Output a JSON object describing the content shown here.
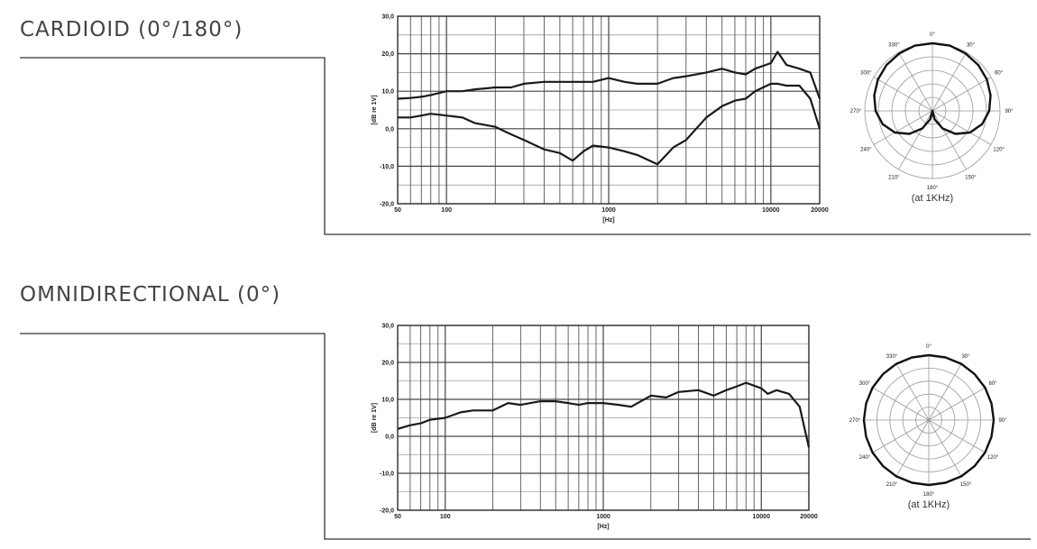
{
  "chart_data": [
    {
      "type": "line",
      "title": "CARDIOID (0°/180°)",
      "xlabel": "[Hz]",
      "ylabel": "[dB re 1V]",
      "xscale": "log",
      "xlim": [
        50,
        20000
      ],
      "ylim": [
        -20,
        30
      ],
      "xticks": [
        50,
        100,
        1000,
        10000,
        20000
      ],
      "xminorticks": [
        60,
        70,
        80,
        90,
        200,
        300,
        400,
        500,
        600,
        700,
        800,
        900,
        2000,
        3000,
        4000,
        5000,
        6000,
        7000,
        8000,
        9000
      ],
      "yticks": [
        {
          "value": -20,
          "label": "-20,0"
        },
        {
          "value": -10,
          "label": "-10,0"
        },
        {
          "value": 0,
          "label": "0,0"
        },
        {
          "value": 10,
          "label": "10,0"
        },
        {
          "value": 20,
          "label": "20,0"
        },
        {
          "value": 30,
          "label": "30,0"
        }
      ],
      "yminorticks": [
        -15,
        -5,
        5,
        15,
        25
      ],
      "grid": true,
      "x": [
        50,
        60,
        70,
        80,
        100,
        125,
        150,
        200,
        250,
        300,
        400,
        500,
        600,
        700,
        800,
        1000,
        1250,
        1500,
        2000,
        2500,
        3000,
        4000,
        5000,
        6000,
        7000,
        8000,
        10000,
        11000,
        12500,
        15000,
        17500,
        20000
      ],
      "series": [
        {
          "color": "#1a1a1a",
          "values": [
            8,
            8.2,
            8.5,
            9,
            10,
            10,
            10.5,
            11,
            11,
            12,
            12.5,
            12.5,
            12.5,
            12.5,
            12.5,
            13.5,
            12.5,
            12,
            12,
            13.5,
            14,
            15,
            16,
            15,
            14.5,
            16,
            17.5,
            20.5,
            17,
            16,
            15,
            8
          ]
        },
        {
          "color": "#1a1a1a",
          "values": [
            3,
            3,
            3.5,
            4,
            3.5,
            3,
            1.5,
            0.5,
            -1.5,
            -3,
            -5.5,
            -6.5,
            -8.5,
            -6,
            -4.5,
            -5,
            -6,
            -7,
            -9.5,
            -5,
            -3,
            3,
            6,
            7.5,
            8,
            10,
            12,
            12,
            11.5,
            11.5,
            8,
            0
          ]
        }
      ]
    },
    {
      "type": "line",
      "title": "OMNIDIRECTIONAL (0°)",
      "xlabel": "[Hz]",
      "ylabel": "[dB re 1V]",
      "xscale": "log",
      "xlim": [
        50,
        20000
      ],
      "ylim": [
        -20,
        30
      ],
      "xticks": [
        50,
        100,
        1000,
        10000,
        20000
      ],
      "xminorticks": [
        60,
        70,
        80,
        90,
        200,
        300,
        400,
        500,
        600,
        700,
        800,
        900,
        2000,
        3000,
        4000,
        5000,
        6000,
        7000,
        8000,
        9000
      ],
      "yticks": [
        {
          "value": -20,
          "label": "-20,0"
        },
        {
          "value": -10,
          "label": "-10,0"
        },
        {
          "value": 0,
          "label": "0,0"
        },
        {
          "value": 10,
          "label": "10,0"
        },
        {
          "value": 20,
          "label": "20,0"
        },
        {
          "value": 30,
          "label": "30,0"
        }
      ],
      "yminorticks": [
        -15,
        -5,
        5,
        15,
        25
      ],
      "grid": true,
      "x": [
        50,
        60,
        70,
        80,
        100,
        125,
        150,
        200,
        250,
        300,
        400,
        500,
        600,
        700,
        800,
        1000,
        1250,
        1500,
        2000,
        2500,
        3000,
        4000,
        5000,
        6000,
        7000,
        8000,
        10000,
        11000,
        12500,
        15000,
        17500,
        20000
      ],
      "series": [
        {
          "color": "#1a1a1a",
          "values": [
            2,
            3,
            3.5,
            4.5,
            5,
            6.5,
            7,
            7,
            9,
            8.5,
            9.5,
            9.5,
            9,
            8.5,
            9,
            9,
            8.5,
            8,
            11,
            10.5,
            12,
            12.5,
            11,
            12.5,
            13.5,
            14.5,
            13,
            11.5,
            12.5,
            11.5,
            8,
            -3
          ]
        }
      ]
    },
    {
      "type": "polar",
      "note": "(at 1KHz)",
      "rlim": [
        0,
        1
      ],
      "rticks": [
        0.2,
        0.4,
        0.6,
        0.8,
        1
      ],
      "angle_labels": [
        {
          "value": 0,
          "label": "0°"
        },
        {
          "value": 30,
          "label": "30°"
        },
        {
          "value": 60,
          "label": "60°"
        },
        {
          "value": 90,
          "label": "90°"
        },
        {
          "value": 120,
          "label": "120°"
        },
        {
          "value": 150,
          "label": "150°"
        },
        {
          "value": 180,
          "label": "180°"
        },
        {
          "value": 210,
          "label": "210°"
        },
        {
          "value": 240,
          "label": "240°"
        },
        {
          "value": 270,
          "label": "270°"
        },
        {
          "value": 300,
          "label": "300°"
        },
        {
          "value": 330,
          "label": "330°"
        }
      ],
      "theta": [
        0,
        15,
        30,
        45,
        60,
        75,
        90,
        105,
        120,
        135,
        150,
        165,
        180,
        195,
        210,
        225,
        240,
        255,
        270,
        285,
        300,
        315,
        330,
        345
      ],
      "r": [
        1,
        1,
        0.98,
        0.96,
        0.93,
        0.89,
        0.84,
        0.76,
        0.64,
        0.48,
        0.3,
        0.13,
        0,
        0.13,
        0.3,
        0.48,
        0.64,
        0.76,
        0.84,
        0.89,
        0.93,
        0.96,
        0.98,
        1
      ],
      "color": "#111"
    },
    {
      "type": "polar",
      "note": "(at 1KHz)",
      "rlim": [
        0,
        1
      ],
      "rticks": [
        0.2,
        0.4,
        0.6,
        0.8,
        1
      ],
      "angle_labels": [
        {
          "value": 0,
          "label": "0°"
        },
        {
          "value": 30,
          "label": "30°"
        },
        {
          "value": 60,
          "label": "60°"
        },
        {
          "value": 90,
          "label": "90°"
        },
        {
          "value": 120,
          "label": "120°"
        },
        {
          "value": 150,
          "label": "150°"
        },
        {
          "value": 180,
          "label": "180°"
        },
        {
          "value": 210,
          "label": "210°"
        },
        {
          "value": 240,
          "label": "240°"
        },
        {
          "value": 270,
          "label": "270°"
        },
        {
          "value": 300,
          "label": "300°"
        },
        {
          "value": 330,
          "label": "330°"
        }
      ],
      "theta": [
        0,
        15,
        30,
        45,
        60,
        75,
        90,
        105,
        120,
        135,
        150,
        165,
        180,
        195,
        210,
        225,
        240,
        255,
        270,
        285,
        300,
        315,
        330,
        345
      ],
      "r": [
        1,
        1,
        1,
        1,
        1,
        1,
        1,
        1,
        1,
        1,
        1,
        1,
        1,
        1,
        1,
        1,
        1,
        1,
        1,
        1,
        1,
        1,
        1,
        1
      ],
      "color": "#111"
    }
  ]
}
